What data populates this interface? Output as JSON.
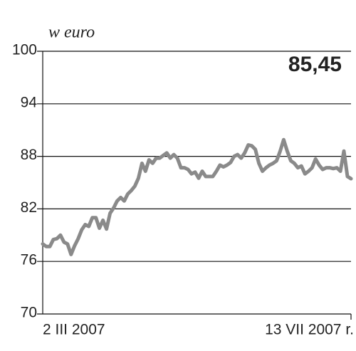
{
  "chart_data": {
    "type": "line",
    "ylabel": "w euro",
    "annotation": "85,45",
    "categories": [
      "2 III 2007",
      null,
      null,
      null,
      null,
      null,
      null,
      null,
      null,
      null,
      null,
      null,
      null,
      null,
      null,
      null,
      null,
      null,
      null,
      null,
      null,
      null,
      null,
      null,
      null,
      null,
      null,
      null,
      null,
      null,
      null,
      null,
      null,
      null,
      null,
      null,
      null,
      null,
      null,
      null,
      null,
      null,
      null,
      null,
      null,
      null,
      null,
      null,
      null,
      null,
      null,
      null,
      null,
      null,
      null,
      null,
      null,
      null,
      null,
      null,
      null,
      null,
      null,
      null,
      null,
      null,
      null,
      null,
      null,
      null,
      null,
      null,
      null,
      null,
      null,
      null,
      null,
      null,
      null,
      null,
      null,
      null,
      null,
      null,
      null,
      null,
      null,
      "13 VII 2007 r."
    ],
    "series": [
      {
        "name": null,
        "color": "#8a8a8a",
        "values": [
          78.0,
          77.7,
          77.7,
          78.5,
          78.6,
          79.0,
          78.2,
          78.0,
          76.8,
          77.8,
          78.6,
          79.6,
          80.2,
          80.0,
          81.0,
          81.0,
          79.8,
          80.7,
          79.7,
          81.5,
          82.1,
          82.9,
          83.3,
          82.9,
          83.7,
          84.1,
          84.6,
          85.5,
          87.2,
          86.3,
          87.6,
          87.2,
          87.8,
          87.8,
          88.1,
          88.4,
          87.8,
          88.2,
          87.8,
          86.7,
          86.7,
          86.5,
          86.0,
          86.2,
          85.5,
          86.3,
          85.7,
          85.7,
          85.7,
          86.3,
          87.0,
          86.8,
          87.0,
          87.3,
          88.0,
          88.2,
          87.8,
          88.4,
          89.3,
          89.2,
          88.8,
          87.2,
          86.3,
          86.7,
          87.0,
          87.2,
          87.5,
          88.6,
          89.9,
          88.6,
          87.5,
          87.2,
          86.7,
          86.9,
          86.0,
          86.3,
          86.7,
          87.7,
          87.0,
          86.5,
          86.7,
          86.7,
          86.6,
          86.7,
          86.3,
          88.6,
          85.7,
          85.45
        ]
      }
    ],
    "ylim": [
      70,
      100
    ],
    "yticks": [
      70,
      76,
      82,
      88,
      94,
      100
    ],
    "grid": true
  }
}
